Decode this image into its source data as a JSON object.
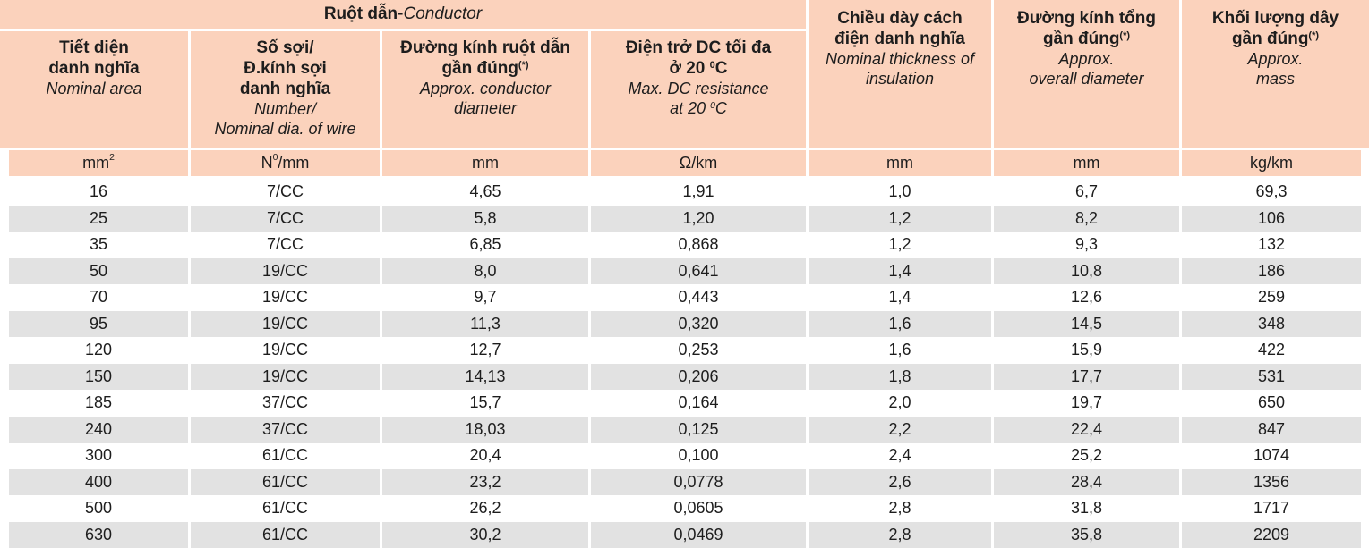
{
  "colors": {
    "header_bg": "#fbd2bc",
    "row_alt_bg": "#e2e2e2",
    "row_bg": "#ffffff",
    "border": "#ffffff",
    "text": "#1d1d1d"
  },
  "table": {
    "group": {
      "vi": "Ruột dẫn",
      "sep": " - ",
      "en": "Conductor"
    },
    "columns": [
      {
        "vi": "Tiết diện\ndanh nghĩa",
        "en": "Nominal area",
        "unit": "mm^{2}"
      },
      {
        "vi": "Số sợi/\nĐ.kính sợi\ndanh nghĩa",
        "en": "Number/\nNominal dia. of wire",
        "unit": "N^{0}/mm"
      },
      {
        "vi": "Đường kính ruột dẫn\ngần đúng^{(*)}",
        "en": "Approx. conductor\ndiameter",
        "unit": "mm"
      },
      {
        "vi": "Điện trở DC tối đa\nở 20 ^{0}C",
        "en": "Max. DC resistance\nat 20 ^{0}C",
        "unit": "Ω/km"
      },
      {
        "vi": "Chiều dày cách\nđiện danh nghĩa",
        "en": "Nominal thickness of\ninsulation",
        "unit": "mm"
      },
      {
        "vi": "Đường kính tổng\ngần đúng^{(*)}",
        "en": "Approx.\noverall diameter",
        "unit": "mm"
      },
      {
        "vi": "Khối lượng dây\ngần đúng^{(*)}",
        "en": "Approx.\nmass",
        "unit": "kg/km"
      }
    ],
    "rows": [
      [
        "16",
        "7/CC",
        "4,65",
        "1,91",
        "1,0",
        "6,7",
        "69,3"
      ],
      [
        "25",
        "7/CC",
        "5,8",
        "1,20",
        "1,2",
        "8,2",
        "106"
      ],
      [
        "35",
        "7/CC",
        "6,85",
        "0,868",
        "1,2",
        "9,3",
        "132"
      ],
      [
        "50",
        "19/CC",
        "8,0",
        "0,641",
        "1,4",
        "10,8",
        "186"
      ],
      [
        "70",
        "19/CC",
        "9,7",
        "0,443",
        "1,4",
        "12,6",
        "259"
      ],
      [
        "95",
        "19/CC",
        "11,3",
        "0,320",
        "1,6",
        "14,5",
        "348"
      ],
      [
        "120",
        "19/CC",
        "12,7",
        "0,253",
        "1,6",
        "15,9",
        "422"
      ],
      [
        "150",
        "19/CC",
        "14,13",
        "0,206",
        "1,8",
        "17,7",
        "531"
      ],
      [
        "185",
        "37/CC",
        "15,7",
        "0,164",
        "2,0",
        "19,7",
        "650"
      ],
      [
        "240",
        "37/CC",
        "18,03",
        "0,125",
        "2,2",
        "22,4",
        "847"
      ],
      [
        "300",
        "61/CC",
        "20,4",
        "0,100",
        "2,4",
        "25,2",
        "1074"
      ],
      [
        "400",
        "61/CC",
        "23,2",
        "0,0778",
        "2,6",
        "28,4",
        "1356"
      ],
      [
        "500",
        "61/CC",
        "26,2",
        "0,0605",
        "2,8",
        "31,8",
        "1717"
      ],
      [
        "630",
        "61/CC",
        "30,2",
        "0,0469",
        "2,8",
        "35,8",
        "2209"
      ]
    ]
  }
}
